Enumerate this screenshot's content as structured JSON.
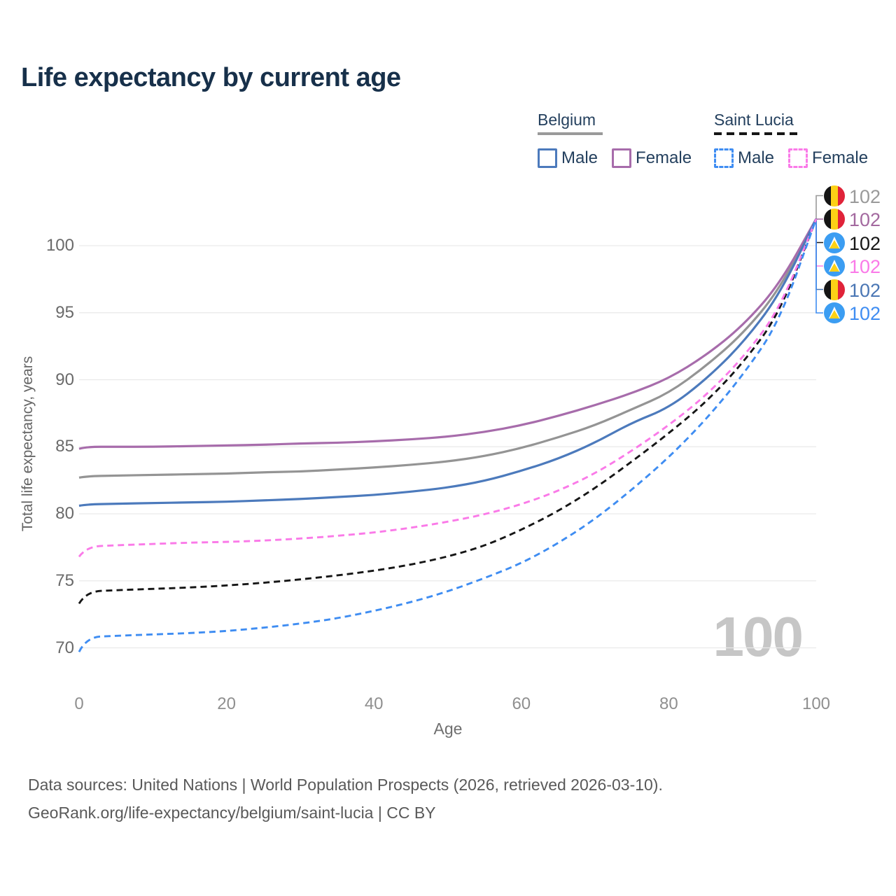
{
  "title": "Life expectancy by current age",
  "legend": {
    "groups": [
      {
        "country": "Belgium",
        "line_style": "solid",
        "line_color": "#9a9a9a",
        "items": [
          {
            "label": "Male",
            "color": "#4c7abc",
            "dashed": false
          },
          {
            "label": "Female",
            "color": "#a76cab",
            "dashed": false
          }
        ]
      },
      {
        "country": "Saint Lucia",
        "line_style": "dashed",
        "line_color": "#161616",
        "items": [
          {
            "label": "Male",
            "color": "#3f8df2",
            "dashed": true
          },
          {
            "label": "Female",
            "color": "#fa7ae8",
            "dashed": true
          }
        ]
      }
    ]
  },
  "age_indicator": "100",
  "footer": {
    "line1": "Data sources: United Nations | World Population Prospects (2026, retrieved 2026-03-10).",
    "line2": "GeoRank.org/life-expectancy/belgium/saint-lucia | CC BY"
  },
  "chart_data": {
    "type": "line",
    "title": "Life expectancy by current age",
    "xlabel": "Age",
    "ylabel": "Total life expectancy, years",
    "xlim": [
      0,
      100
    ],
    "ylim": [
      69,
      103
    ],
    "x_ticks": [
      0,
      20,
      40,
      60,
      80,
      100
    ],
    "y_ticks": [
      70,
      75,
      80,
      85,
      90,
      95,
      100
    ],
    "grid": "horizontal-only",
    "legend_position": "top-right",
    "ages": [
      0,
      1,
      5,
      10,
      15,
      20,
      25,
      30,
      35,
      40,
      45,
      50,
      55,
      60,
      65,
      70,
      75,
      80,
      85,
      90,
      95,
      100
    ],
    "series": [
      {
        "name": "Belgium (both sexes)",
        "country": "Belgium",
        "sex": "both",
        "color": "#949494",
        "dashed": false,
        "end_value": "102",
        "label_row": 0,
        "values": [
          82.7,
          82.8,
          82.85,
          82.9,
          82.95,
          83.0,
          83.1,
          83.15,
          83.3,
          83.45,
          83.65,
          83.9,
          84.3,
          84.9,
          85.7,
          86.6,
          87.8,
          89.0,
          91.0,
          93.4,
          96.7,
          102
        ]
      },
      {
        "name": "Belgium Female",
        "country": "Belgium",
        "sex": "female",
        "color": "#a76cab",
        "dashed": false,
        "end_value": "102",
        "label_row": 1,
        "values": [
          84.85,
          85.0,
          85.0,
          85.0,
          85.05,
          85.1,
          85.15,
          85.25,
          85.3,
          85.4,
          85.55,
          85.75,
          86.1,
          86.6,
          87.3,
          88.1,
          89.0,
          90.1,
          91.8,
          94.0,
          97.1,
          102
        ]
      },
      {
        "name": "Belgium Male",
        "country": "Belgium",
        "sex": "male",
        "color": "#4c7abc",
        "dashed": false,
        "end_value": "102",
        "label_row": 4,
        "values": [
          80.6,
          80.7,
          80.75,
          80.8,
          80.85,
          80.9,
          81.0,
          81.1,
          81.25,
          81.4,
          81.65,
          81.95,
          82.45,
          83.2,
          84.1,
          85.3,
          86.8,
          87.9,
          90.0,
          92.7,
          96.3,
          102
        ]
      },
      {
        "name": "Saint Lucia (both sexes)",
        "country": "Saint Lucia",
        "sex": "both",
        "color": "#161616",
        "dashed": true,
        "end_value": "102",
        "label_row": 2,
        "values": [
          73.3,
          74.2,
          74.3,
          74.4,
          74.5,
          74.65,
          74.85,
          75.1,
          75.4,
          75.75,
          76.2,
          76.8,
          77.6,
          78.8,
          80.2,
          81.9,
          83.9,
          86.0,
          88.3,
          91.2,
          94.9,
          102
        ]
      },
      {
        "name": "Saint Lucia Female",
        "country": "Saint Lucia",
        "sex": "female",
        "color": "#fa7ae8",
        "dashed": true,
        "end_value": "102",
        "label_row": 3,
        "values": [
          76.8,
          77.55,
          77.65,
          77.75,
          77.85,
          77.9,
          78.0,
          78.15,
          78.35,
          78.6,
          78.95,
          79.4,
          79.95,
          80.7,
          81.7,
          83.0,
          84.7,
          86.6,
          88.8,
          91.6,
          95.2,
          102
        ]
      },
      {
        "name": "Saint Lucia Male",
        "country": "Saint Lucia",
        "sex": "male",
        "color": "#3f8df2",
        "dashed": true,
        "end_value": "102",
        "label_row": 5,
        "values": [
          69.7,
          70.8,
          70.9,
          71.0,
          71.1,
          71.25,
          71.5,
          71.8,
          72.2,
          72.75,
          73.4,
          74.2,
          75.2,
          76.3,
          77.8,
          79.6,
          81.8,
          84.2,
          87.0,
          90.3,
          94.3,
          102
        ]
      }
    ],
    "end_labels": [
      {
        "flag": "belgium",
        "value": "102",
        "color": "#9a9a9a"
      },
      {
        "flag": "belgium",
        "value": "102",
        "color": "#a3699f"
      },
      {
        "flag": "saint-lucia",
        "value": "102",
        "color": "#161616"
      },
      {
        "flag": "saint-lucia",
        "value": "102",
        "color": "#fa7ae8"
      },
      {
        "flag": "belgium",
        "value": "102",
        "color": "#4a76b4"
      },
      {
        "flag": "saint-lucia",
        "value": "102",
        "color": "#3f8df2"
      }
    ]
  }
}
